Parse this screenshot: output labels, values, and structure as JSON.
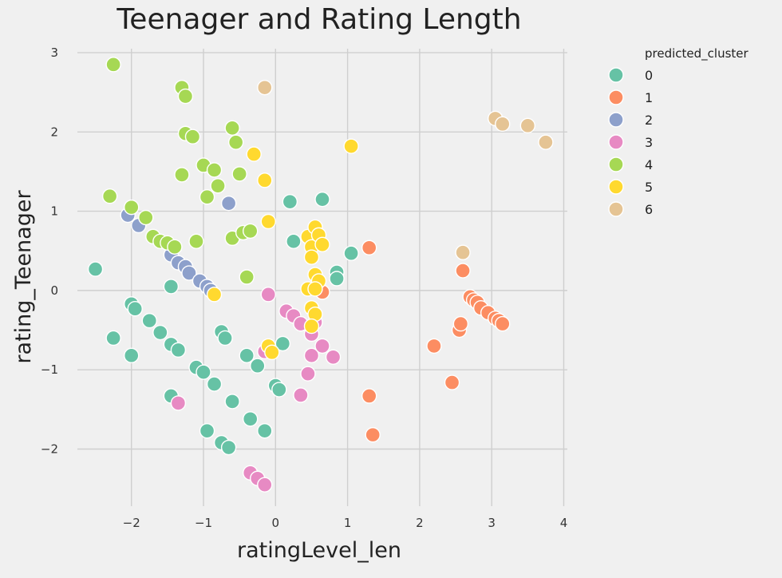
{
  "chart_data": {
    "type": "scatter",
    "title": "Teenager and Rating Length",
    "xlabel": "ratingLevel_len",
    "ylabel": "rating_Teenager",
    "xlim": [
      -2.75,
      4.05
    ],
    "ylim": [
      -2.72,
      3.05
    ],
    "xticks": [
      -2,
      -1,
      0,
      1,
      2,
      3,
      4
    ],
    "yticks": [
      -2,
      -1,
      0,
      1,
      2,
      3
    ],
    "xtick_labels": [
      "−2",
      "−1",
      "0",
      "1",
      "2",
      "3",
      "4"
    ],
    "ytick_labels": [
      "−2",
      "−1",
      "0",
      "1",
      "2",
      "3"
    ],
    "grid": true,
    "legend": {
      "title": "predicted_cluster",
      "placement": "outside-right"
    },
    "series": [
      {
        "name": "0",
        "color": "#66c2a5",
        "points": [
          [
            -2.5,
            0.27
          ],
          [
            -2.25,
            -0.6
          ],
          [
            -2.0,
            -0.17
          ],
          [
            -1.95,
            -0.23
          ],
          [
            -2.0,
            -0.82
          ],
          [
            -1.75,
            -0.38
          ],
          [
            -1.6,
            -0.53
          ],
          [
            -1.45,
            -0.68
          ],
          [
            -1.35,
            -0.75
          ],
          [
            -1.45,
            0.05
          ],
          [
            -1.45,
            -1.33
          ],
          [
            -1.1,
            -0.97
          ],
          [
            -1.0,
            -1.03
          ],
          [
            -0.85,
            -1.18
          ],
          [
            -0.75,
            -0.52
          ],
          [
            -0.7,
            -0.6
          ],
          [
            -0.4,
            -0.82
          ],
          [
            -0.25,
            -0.95
          ],
          [
            -0.6,
            -1.4
          ],
          [
            -0.95,
            -1.77
          ],
          [
            -0.75,
            -1.92
          ],
          [
            -0.65,
            -1.98
          ],
          [
            -0.35,
            -1.62
          ],
          [
            -0.15,
            -1.77
          ],
          [
            0.0,
            -1.2
          ],
          [
            0.05,
            -1.25
          ],
          [
            0.1,
            -0.67
          ],
          [
            0.2,
            1.12
          ],
          [
            0.25,
            0.62
          ],
          [
            0.65,
            1.15
          ],
          [
            0.85,
            0.23
          ],
          [
            0.85,
            0.15
          ],
          [
            1.05,
            0.47
          ]
        ]
      },
      {
        "name": "1",
        "color": "#fc8d62",
        "points": [
          [
            0.65,
            -0.02
          ],
          [
            1.3,
            0.54
          ],
          [
            1.3,
            -1.33
          ],
          [
            1.35,
            -1.82
          ],
          [
            2.2,
            -0.7
          ],
          [
            2.45,
            -1.16
          ],
          [
            2.55,
            -0.5
          ],
          [
            2.57,
            -0.42
          ],
          [
            2.6,
            0.25
          ],
          [
            2.7,
            -0.08
          ],
          [
            2.75,
            -0.12
          ],
          [
            2.8,
            -0.15
          ],
          [
            2.85,
            -0.22
          ],
          [
            2.95,
            -0.28
          ],
          [
            3.05,
            -0.35
          ],
          [
            3.1,
            -0.38
          ],
          [
            3.15,
            -0.42
          ]
        ]
      },
      {
        "name": "2",
        "color": "#8da0cb",
        "points": [
          [
            -2.05,
            0.95
          ],
          [
            -1.9,
            0.82
          ],
          [
            -1.45,
            0.45
          ],
          [
            -1.35,
            0.35
          ],
          [
            -1.25,
            0.3
          ],
          [
            -1.2,
            0.22
          ],
          [
            -1.05,
            0.12
          ],
          [
            -0.95,
            0.05
          ],
          [
            -0.9,
            0.0
          ],
          [
            -0.65,
            1.1
          ]
        ]
      },
      {
        "name": "3",
        "color": "#e78ac3",
        "points": [
          [
            -1.35,
            -1.42
          ],
          [
            -0.35,
            -2.3
          ],
          [
            -0.25,
            -2.37
          ],
          [
            -0.15,
            -2.45
          ],
          [
            -0.15,
            -0.77
          ],
          [
            -0.1,
            -0.05
          ],
          [
            0.15,
            -0.26
          ],
          [
            0.25,
            -0.32
          ],
          [
            0.35,
            -0.42
          ],
          [
            0.35,
            -1.32
          ],
          [
            0.45,
            -1.05
          ],
          [
            0.5,
            -0.55
          ],
          [
            0.5,
            -0.82
          ],
          [
            0.55,
            -0.4
          ],
          [
            0.65,
            -0.7
          ],
          [
            0.8,
            -0.84
          ]
        ]
      },
      {
        "name": "4",
        "color": "#a6d854",
        "points": [
          [
            -2.25,
            2.85
          ],
          [
            -2.3,
            1.19
          ],
          [
            -2.0,
            1.05
          ],
          [
            -1.8,
            0.92
          ],
          [
            -1.7,
            0.68
          ],
          [
            -1.6,
            0.62
          ],
          [
            -1.5,
            0.6
          ],
          [
            -1.4,
            0.55
          ],
          [
            -1.3,
            2.56
          ],
          [
            -1.25,
            2.45
          ],
          [
            -1.25,
            1.98
          ],
          [
            -1.15,
            1.94
          ],
          [
            -1.3,
            1.46
          ],
          [
            -1.0,
            1.58
          ],
          [
            -0.85,
            1.52
          ],
          [
            -0.8,
            1.32
          ],
          [
            -0.95,
            1.18
          ],
          [
            -1.1,
            0.62
          ],
          [
            -0.6,
            2.05
          ],
          [
            -0.55,
            1.87
          ],
          [
            -0.5,
            1.47
          ],
          [
            -0.6,
            0.66
          ],
          [
            -0.45,
            0.73
          ],
          [
            -0.35,
            0.75
          ],
          [
            -0.4,
            0.17
          ]
        ]
      },
      {
        "name": "5",
        "color": "#ffd92f",
        "points": [
          [
            -0.3,
            1.72
          ],
          [
            -0.15,
            1.39
          ],
          [
            -0.1,
            0.87
          ],
          [
            -0.85,
            -0.05
          ],
          [
            -0.1,
            -0.7
          ],
          [
            -0.05,
            -0.78
          ],
          [
            0.45,
            0.68
          ],
          [
            0.5,
            0.55
          ],
          [
            0.55,
            0.8
          ],
          [
            0.6,
            0.7
          ],
          [
            0.65,
            0.58
          ],
          [
            0.5,
            0.42
          ],
          [
            0.55,
            0.2
          ],
          [
            0.6,
            0.12
          ],
          [
            0.45,
            0.02
          ],
          [
            0.55,
            0.02
          ],
          [
            0.5,
            -0.22
          ],
          [
            0.55,
            -0.3
          ],
          [
            0.5,
            -0.45
          ],
          [
            1.05,
            1.82
          ]
        ]
      },
      {
        "name": "6",
        "color": "#e5c494",
        "points": [
          [
            -0.15,
            2.56
          ],
          [
            2.6,
            0.48
          ],
          [
            3.05,
            2.17
          ],
          [
            3.15,
            2.1
          ],
          [
            3.5,
            2.08
          ],
          [
            3.75,
            1.87
          ]
        ]
      }
    ]
  }
}
